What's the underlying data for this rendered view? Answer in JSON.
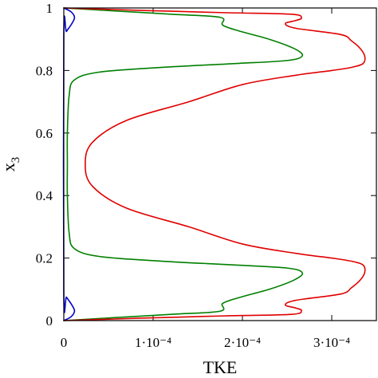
{
  "chart_data": {
    "type": "line",
    "xlabel": "TKE",
    "ylabel": "x",
    "ylabel_subscript": "3",
    "xlim": [
      0,
      0.00035
    ],
    "ylim": [
      0,
      1
    ],
    "grid": false,
    "x_ticks": [
      {
        "value": 0,
        "label": "0"
      },
      {
        "value": 0.0001,
        "label": "1·10⁻⁴"
      },
      {
        "value": 0.0002,
        "label": "2·10⁻⁴"
      },
      {
        "value": 0.0003,
        "label": "3·10⁻⁴"
      }
    ],
    "y_ticks": [
      {
        "value": 0,
        "label": "0"
      },
      {
        "value": 0.2,
        "label": "0.2"
      },
      {
        "value": 0.4,
        "label": "0.4"
      },
      {
        "value": 0.6,
        "label": "0.6"
      },
      {
        "value": 0.8,
        "label": "0.8"
      },
      {
        "value": 1,
        "label": "1"
      }
    ],
    "series": [
      {
        "color": "#0000cc",
        "points": [
          [
            0,
            0.0
          ],
          [
            8e-06,
            0.012
          ],
          [
            1.2e-05,
            0.03
          ],
          [
            9e-06,
            0.05
          ],
          [
            3e-06,
            0.075
          ],
          [
            0,
            0.09
          ],
          [
            0,
            0.91
          ],
          [
            3e-06,
            0.925
          ],
          [
            9e-06,
            0.95
          ],
          [
            1.2e-05,
            0.97
          ],
          [
            8e-06,
            0.988
          ],
          [
            0,
            1.0
          ]
        ]
      },
      {
        "color": "#008000",
        "points": [
          [
            0,
            0.0
          ],
          [
            6e-05,
            0.01
          ],
          [
            0.00012,
            0.02
          ],
          [
            0.000175,
            0.03
          ],
          [
            0.000178,
            0.055
          ],
          [
            0.000198,
            0.075
          ],
          [
            0.00023,
            0.1
          ],
          [
            0.000258,
            0.13
          ],
          [
            0.000267,
            0.153
          ],
          [
            0.00025,
            0.168
          ],
          [
            0.00019,
            0.178
          ],
          [
            0.00011,
            0.19
          ],
          [
            4e-05,
            0.205
          ],
          [
            1.2e-05,
            0.23
          ],
          [
            6e-06,
            0.28
          ],
          [
            4e-06,
            0.4
          ],
          [
            4e-06,
            0.5
          ],
          [
            4e-06,
            0.6
          ],
          [
            6e-06,
            0.72
          ],
          [
            1.2e-05,
            0.77
          ],
          [
            4e-05,
            0.795
          ],
          [
            0.00011,
            0.81
          ],
          [
            0.00019,
            0.822
          ],
          [
            0.00025,
            0.832
          ],
          [
            0.000267,
            0.847
          ],
          [
            0.000258,
            0.87
          ],
          [
            0.00023,
            0.9
          ],
          [
            0.000198,
            0.925
          ],
          [
            0.000178,
            0.945
          ],
          [
            0.000175,
            0.97
          ],
          [
            0.00012,
            0.98
          ],
          [
            6e-05,
            0.99
          ],
          [
            0,
            1.0
          ]
        ]
      },
      {
        "color": "#e00000",
        "points": [
          [
            0,
            0.0
          ],
          [
            9e-05,
            0.008
          ],
          [
            0.00018,
            0.015
          ],
          [
            0.000255,
            0.02
          ],
          [
            0.000266,
            0.032
          ],
          [
            0.00026,
            0.04
          ],
          [
            0.000248,
            0.05
          ],
          [
            0.00026,
            0.065
          ],
          [
            0.00031,
            0.085
          ],
          [
            0.000322,
            0.105
          ],
          [
            0.000332,
            0.13
          ],
          [
            0.000337,
            0.155
          ],
          [
            0.000335,
            0.178
          ],
          [
            0.000322,
            0.19
          ],
          [
            0.0003,
            0.2
          ],
          [
            0.00026,
            0.215
          ],
          [
            0.0002,
            0.245
          ],
          [
            0.00014,
            0.3
          ],
          [
            7e-05,
            0.36
          ],
          [
            3.2e-05,
            0.43
          ],
          [
            2.4e-05,
            0.5
          ],
          [
            3.2e-05,
            0.57
          ],
          [
            7e-05,
            0.64
          ],
          [
            0.00014,
            0.7
          ],
          [
            0.0002,
            0.755
          ],
          [
            0.00026,
            0.785
          ],
          [
            0.0003,
            0.8
          ],
          [
            0.000322,
            0.81
          ],
          [
            0.000335,
            0.822
          ],
          [
            0.000337,
            0.845
          ],
          [
            0.000332,
            0.87
          ],
          [
            0.000322,
            0.895
          ],
          [
            0.00031,
            0.915
          ],
          [
            0.00026,
            0.935
          ],
          [
            0.000248,
            0.95
          ],
          [
            0.00026,
            0.96
          ],
          [
            0.000266,
            0.968
          ],
          [
            0.000255,
            0.98
          ],
          [
            0.00018,
            0.985
          ],
          [
            9e-05,
            0.992
          ],
          [
            0,
            1.0
          ]
        ]
      }
    ]
  }
}
